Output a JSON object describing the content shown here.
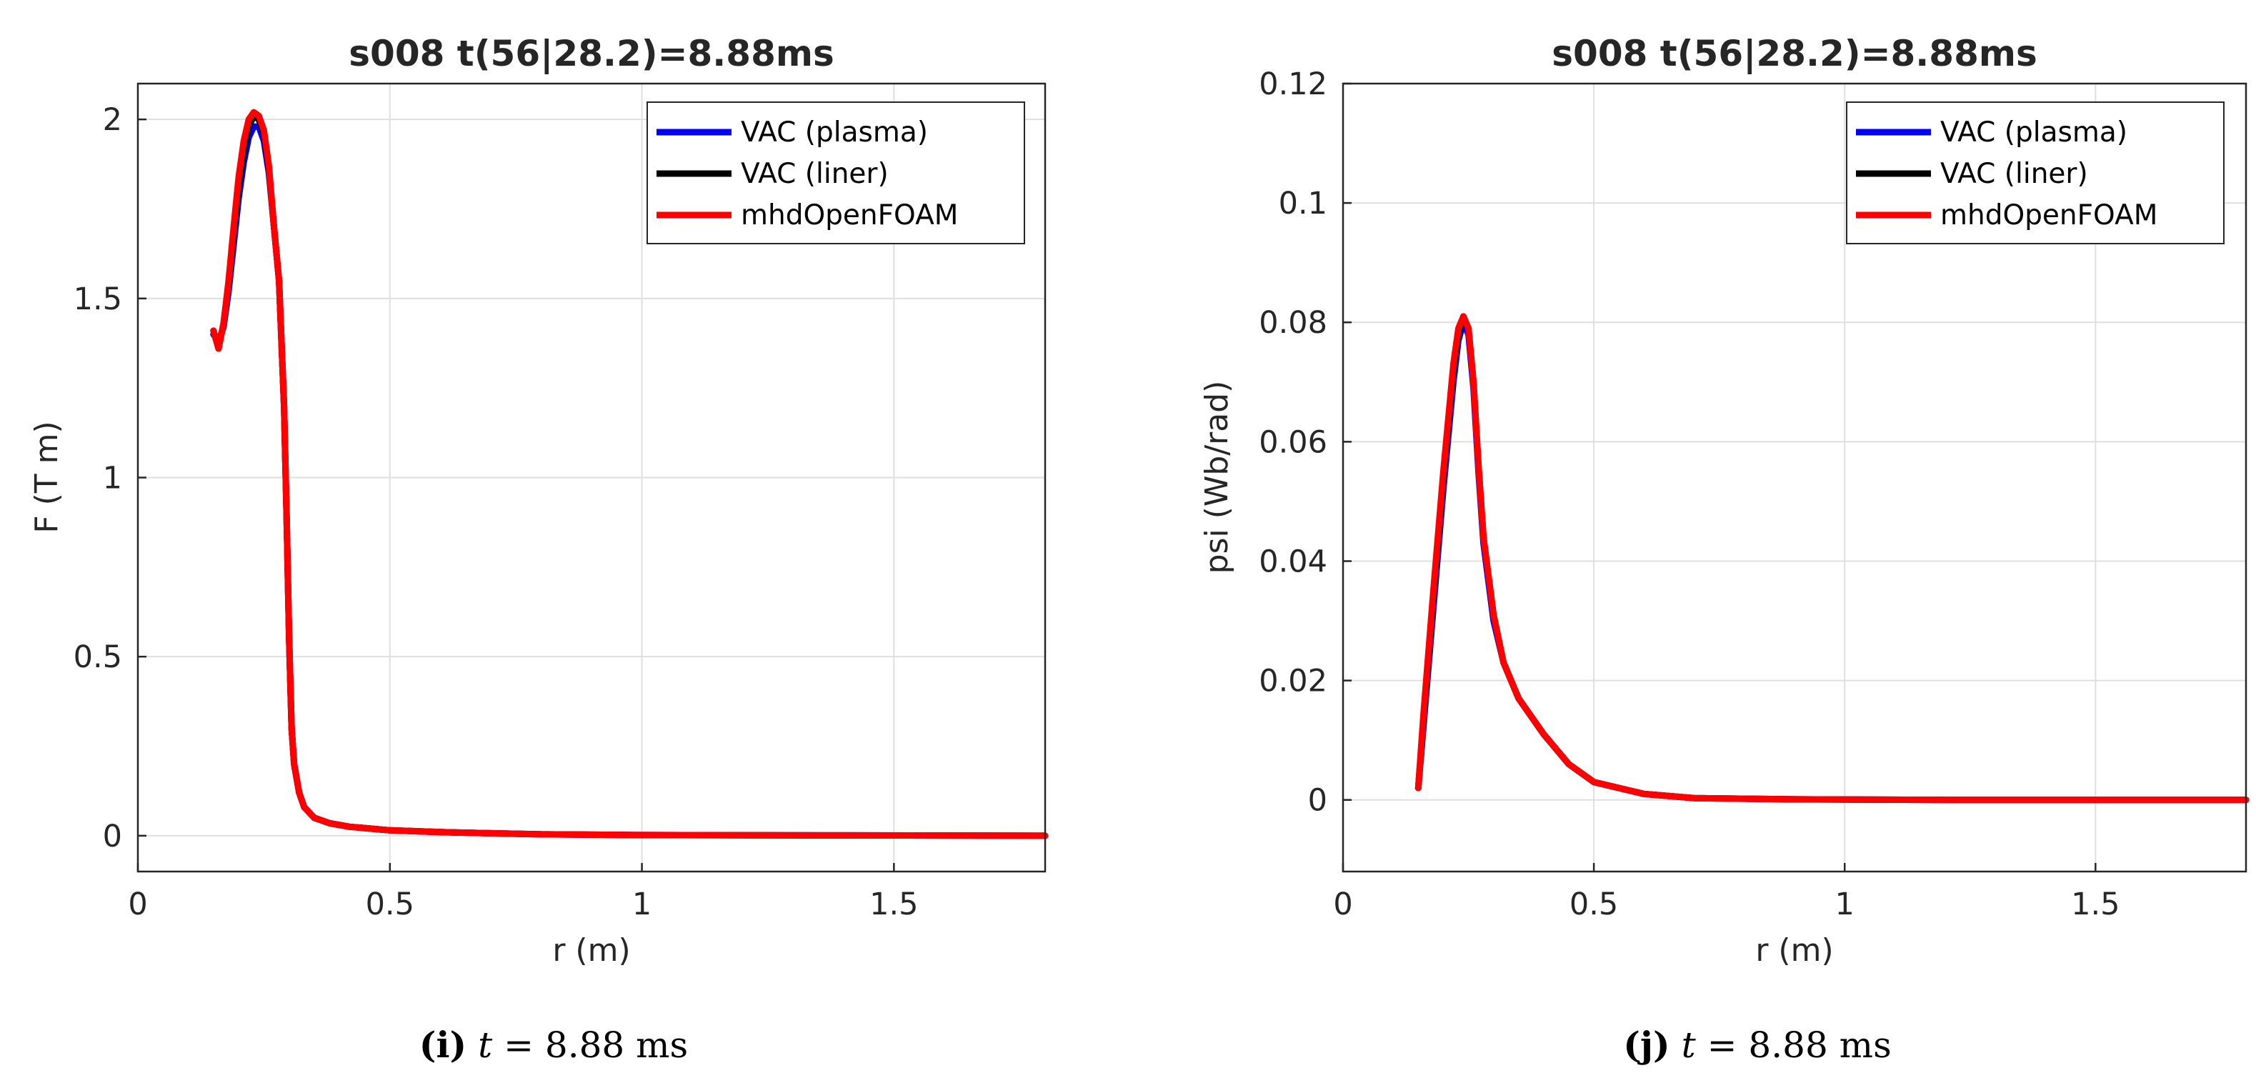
{
  "chart_data": [
    {
      "type": "line",
      "title": "s008 t(56|28.2)=8.88ms",
      "xlabel": "r (m)",
      "ylabel": "F (T m)",
      "xlim": [
        0,
        1.8
      ],
      "ylim": [
        -0.1,
        2.1
      ],
      "x_ticks": [
        0,
        0.5,
        1,
        1.5
      ],
      "x_tick_labels": [
        "0",
        "0.5",
        "1",
        "1.5"
      ],
      "y_ticks": [
        0,
        0.5,
        1,
        1.5,
        2
      ],
      "y_tick_labels": [
        "0",
        "0.5",
        "1",
        "1.5",
        "2"
      ],
      "grid": true,
      "legend_position": "top-right",
      "caption": {
        "label": "(i)",
        "var": "t",
        "eq": " = 8.88 ms"
      },
      "series": [
        {
          "name": "VAC (plasma)",
          "color": "#0000ff",
          "x": [
            0.15,
            0.16,
            0.17,
            0.18,
            0.19,
            0.2,
            0.21,
            0.22,
            0.23,
            0.24,
            0.25,
            0.26,
            0.27,
            0.28,
            0.29,
            0.295,
            0.3,
            0.305,
            0.31,
            0.32,
            0.33,
            0.35,
            0.38,
            0.42,
            0.5,
            0.6,
            0.8,
            1.0,
            1.4,
            1.8
          ],
          "y": [
            1.4,
            1.38,
            1.42,
            1.52,
            1.65,
            1.78,
            1.88,
            1.95,
            1.98,
            1.98,
            1.94,
            1.85,
            1.7,
            1.55,
            1.2,
            0.9,
            0.55,
            0.3,
            0.2,
            0.12,
            0.08,
            0.05,
            0.035,
            0.025,
            0.015,
            0.01,
            0.004,
            0.002,
            0.001,
            0.0
          ]
        },
        {
          "name": "VAC (liner)",
          "color": "#000000",
          "x": [
            0.15,
            0.16,
            0.17,
            0.18,
            0.19,
            0.2,
            0.21,
            0.22,
            0.23,
            0.24,
            0.25,
            0.26,
            0.27,
            0.28,
            0.29,
            0.295,
            0.3,
            0.305,
            0.31,
            0.32,
            0.33,
            0.35,
            0.38,
            0.42,
            0.5,
            0.6,
            0.8,
            1.0,
            1.4,
            1.8
          ],
          "y": [
            1.41,
            1.36,
            1.43,
            1.54,
            1.68,
            1.81,
            1.91,
            1.98,
            2.01,
            2.0,
            1.96,
            1.86,
            1.7,
            1.55,
            1.2,
            0.9,
            0.55,
            0.3,
            0.2,
            0.12,
            0.08,
            0.05,
            0.035,
            0.025,
            0.015,
            0.01,
            0.004,
            0.002,
            0.001,
            0.0
          ]
        },
        {
          "name": "mhdOpenFOAM",
          "color": "#ff0000",
          "x": [
            0.15,
            0.16,
            0.17,
            0.18,
            0.19,
            0.2,
            0.21,
            0.22,
            0.23,
            0.24,
            0.25,
            0.26,
            0.27,
            0.28,
            0.29,
            0.295,
            0.3,
            0.305,
            0.31,
            0.32,
            0.33,
            0.35,
            0.38,
            0.42,
            0.5,
            0.6,
            0.8,
            1.0,
            1.4,
            1.8
          ],
          "y": [
            1.41,
            1.36,
            1.43,
            1.55,
            1.7,
            1.84,
            1.94,
            2.0,
            2.02,
            2.01,
            1.97,
            1.87,
            1.7,
            1.55,
            1.2,
            0.9,
            0.55,
            0.3,
            0.2,
            0.12,
            0.08,
            0.05,
            0.035,
            0.025,
            0.015,
            0.01,
            0.004,
            0.002,
            0.001,
            0.0
          ]
        }
      ]
    },
    {
      "type": "line",
      "title": "s008 t(56|28.2)=8.88ms",
      "xlabel": "r (m)",
      "ylabel": "psi (Wb/rad)",
      "xlim": [
        0,
        1.8
      ],
      "ylim": [
        -0.012,
        0.12
      ],
      "x_ticks": [
        0,
        0.5,
        1,
        1.5
      ],
      "x_tick_labels": [
        "0",
        "0.5",
        "1",
        "1.5"
      ],
      "y_ticks": [
        0,
        0.02,
        0.04,
        0.06,
        0.08,
        0.1,
        0.12
      ],
      "y_tick_labels": [
        "0",
        "0.02",
        "0.04",
        "0.06",
        "0.08",
        "0.1",
        "0.12"
      ],
      "grid": true,
      "legend_position": "top-right",
      "caption": {
        "label": "(j)",
        "var": "t",
        "eq": " = 8.88 ms"
      },
      "series": [
        {
          "name": "VAC (plasma)",
          "color": "#0000ff",
          "x": [
            0.15,
            0.16,
            0.18,
            0.2,
            0.22,
            0.23,
            0.24,
            0.25,
            0.26,
            0.27,
            0.28,
            0.3,
            0.32,
            0.35,
            0.4,
            0.45,
            0.5,
            0.6,
            0.7,
            0.9,
            1.2,
            1.8
          ],
          "y": [
            0.002,
            0.012,
            0.032,
            0.052,
            0.07,
            0.077,
            0.08,
            0.078,
            0.069,
            0.055,
            0.043,
            0.03,
            0.023,
            0.017,
            0.011,
            0.006,
            0.003,
            0.001,
            0.0003,
            0.0001,
            0.0,
            0.0
          ]
        },
        {
          "name": "VAC (liner)",
          "color": "#000000",
          "x": [
            0.15,
            0.16,
            0.18,
            0.2,
            0.22,
            0.23,
            0.24,
            0.25,
            0.26,
            0.27,
            0.28,
            0.3,
            0.32,
            0.35,
            0.4,
            0.45,
            0.5,
            0.6,
            0.7,
            0.9,
            1.2,
            1.8
          ],
          "y": [
            0.002,
            0.013,
            0.034,
            0.054,
            0.072,
            0.078,
            0.081,
            0.079,
            0.07,
            0.056,
            0.044,
            0.031,
            0.023,
            0.017,
            0.011,
            0.006,
            0.003,
            0.001,
            0.0003,
            0.0001,
            0.0,
            0.0
          ]
        },
        {
          "name": "mhdOpenFOAM",
          "color": "#ff0000",
          "x": [
            0.15,
            0.16,
            0.18,
            0.2,
            0.22,
            0.23,
            0.24,
            0.25,
            0.26,
            0.27,
            0.28,
            0.3,
            0.32,
            0.35,
            0.4,
            0.45,
            0.5,
            0.6,
            0.7,
            0.9,
            1.2,
            1.8
          ],
          "y": [
            0.002,
            0.014,
            0.035,
            0.055,
            0.073,
            0.079,
            0.081,
            0.079,
            0.07,
            0.056,
            0.044,
            0.031,
            0.023,
            0.017,
            0.011,
            0.006,
            0.003,
            0.001,
            0.0003,
            0.0001,
            0.0,
            0.0
          ]
        }
      ]
    }
  ]
}
